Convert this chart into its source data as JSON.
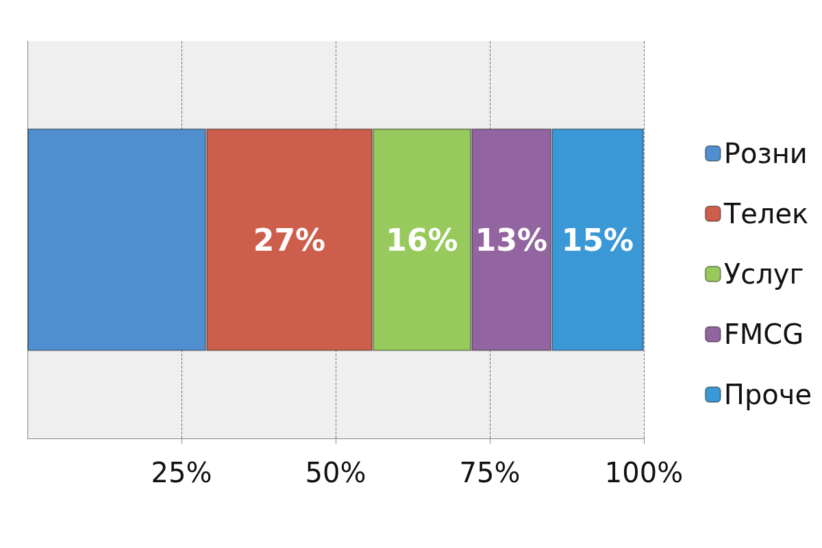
{
  "chart_data": {
    "type": "bar",
    "orientation": "horizontal",
    "stacked": true,
    "categories": [
      null
    ],
    "series": [
      {
        "name": "Розни",
        "color": "#4f8fd0",
        "values": [
          29
        ],
        "value_labels": [
          null
        ]
      },
      {
        "name": "Телек",
        "color": "#cd5e4c",
        "values": [
          27
        ],
        "value_labels": [
          "27%"
        ]
      },
      {
        "name": "Услуг",
        "color": "#97c95c",
        "values": [
          16
        ],
        "value_labels": [
          "16%"
        ]
      },
      {
        "name": "FMCG",
        "color": "#9365a0",
        "values": [
          13
        ],
        "value_labels": [
          "13%"
        ]
      },
      {
        "name": "Проче",
        "color": "#3a98d6",
        "values": [
          15
        ],
        "value_labels": [
          "15%"
        ]
      }
    ],
    "xlim": [
      0,
      100
    ],
    "xticks": [
      {
        "value": 25,
        "label": "25%"
      },
      {
        "value": 50,
        "label": "50%"
      },
      {
        "value": 75,
        "label": "75%"
      },
      {
        "value": 100,
        "label": "100%"
      }
    ],
    "grid": "x",
    "legend": "right"
  }
}
